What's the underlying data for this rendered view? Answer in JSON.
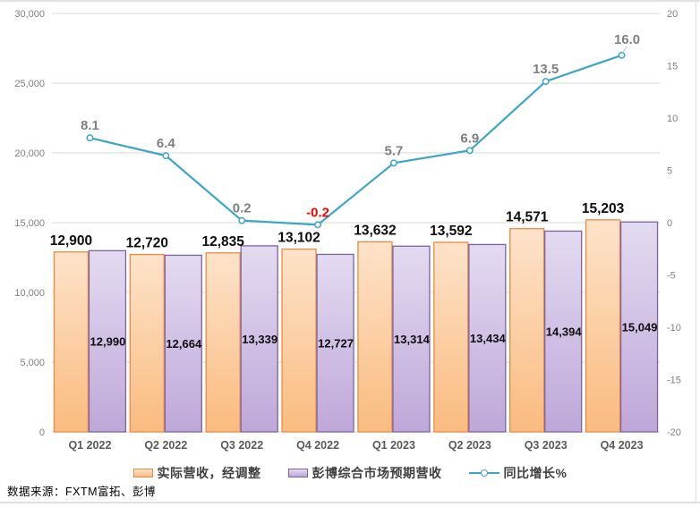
{
  "chart_data": {
    "type": "bar+line combo",
    "title": "",
    "categories": [
      "Q1 2022",
      "Q2 2022",
      "Q3 2022",
      "Q4 2022",
      "Q1 2023",
      "Q2 2023",
      "Q3 2023",
      "Q4 2023"
    ],
    "series": [
      {
        "name": "实际营收，经调整",
        "type": "bar",
        "axis": "left",
        "values": [
          12900,
          12720,
          12835,
          13102,
          13632,
          13592,
          14571,
          15203
        ],
        "labels": [
          "12,900",
          "12,720",
          "12,835",
          "13,102",
          "13,632",
          "13,592",
          "14,571",
          "15,203"
        ]
      },
      {
        "name": "彭博综合市场预期营收",
        "type": "bar",
        "axis": "left",
        "values": [
          12990,
          12664,
          13339,
          12727,
          13314,
          13434,
          14394,
          15049
        ],
        "labels": [
          "12,990",
          "12,664",
          "13,339",
          "12,727",
          "13,314",
          "13,434",
          "14,394",
          "15,049"
        ]
      },
      {
        "name": "同比增长%",
        "type": "line",
        "axis": "right",
        "values": [
          8.1,
          6.4,
          0.2,
          -0.2,
          5.7,
          6.9,
          13.5,
          16.0
        ],
        "labels": [
          "8.1",
          "6.4",
          "0.2",
          "-0.2",
          "5.7",
          "6.9",
          "13.5",
          "16.0"
        ]
      }
    ],
    "left_axis": {
      "min": 0,
      "max": 30000,
      "step": 5000,
      "ticks": [
        "0",
        "5,000",
        "10,000",
        "15,000",
        "20,000",
        "25,000",
        "30,000"
      ]
    },
    "right_axis": {
      "min": -20,
      "max": 20,
      "step": 5,
      "ticks": [
        "-20",
        "-15",
        "-10",
        "-5",
        "0",
        "5",
        "10",
        "15",
        "20"
      ]
    },
    "grid": true,
    "legend_position": "bottom"
  },
  "legend": [
    {
      "label": "实际营收，经调整",
      "swatch": "bar-orange"
    },
    {
      "label": "彭博综合市场预期营收",
      "swatch": "bar-purple"
    },
    {
      "label": "同比增长%",
      "swatch": "line-teal"
    }
  ],
  "colors": {
    "orange_fill_top": "#FDE3CA",
    "orange_fill_bottom": "#FABB7F",
    "orange_border": "#EA8B42",
    "purple_fill_top": "#E3DBF1",
    "purple_fill_bottom": "#BEA7D9",
    "purple_border": "#7E62A1",
    "line_teal": "#3DA6C6",
    "marker_fill": "#FFFFFF",
    "gridline": "#D9D9D9",
    "axis_text": "#7F7F7F",
    "category_text": "#595959",
    "bar_label_text": "#0D0D0D",
    "line_label_text": "#7F7F7F",
    "line_label_negative": "#FF0000"
  },
  "source_note": "数据来源：FXTM富拓、彭博"
}
